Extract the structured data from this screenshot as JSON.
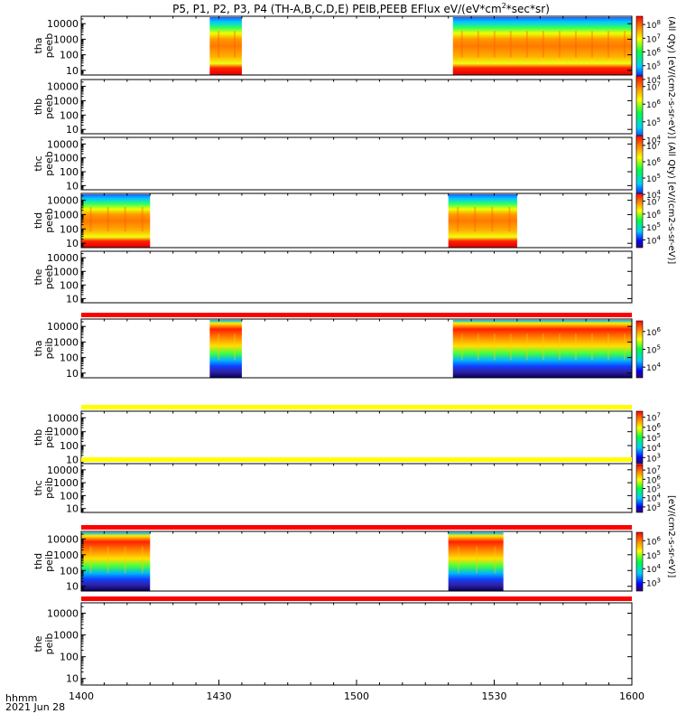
{
  "chart_data": {
    "type": "heatmap",
    "title": "P5, P1, P2, P3, P4 (TH-A,B,C,D,E) PEIB,PEEB EFlux eV/(eV*cm",
    "title_sup": "2",
    "title_end": "*sec*sr)",
    "x_axis": {
      "range": [
        "14:00",
        "16:00"
      ],
      "tick_labels": [
        "1400",
        "1430",
        "1500",
        "1530",
        "1600"
      ],
      "label_top": "hhmm",
      "label_bottom": "2021 Jun 28"
    },
    "y_axis": {
      "scale": "log",
      "range": [
        5,
        30000
      ],
      "tick_labels": [
        "10",
        "100",
        "1000",
        "10000"
      ]
    },
    "colorbar_label_electron": "(All Qty) [eV/(cm2-s-sr-eV)] (All Qty) [eV/(cm2-s-sr-eV)]",
    "colorbar_label_ion": "[eV/(cm2-s-sr-eV)]",
    "panels": [
      {
        "name": "tha peeb",
        "label1": "tha",
        "label2": "peeb",
        "species": "electron",
        "segments": [
          [
            "14:28",
            "14:35"
          ],
          [
            "15:21",
            "16:00"
          ]
        ],
        "colorbar_ticks": [
          "10^4",
          "10^5",
          "10^6",
          "10^7",
          "10^8"
        ]
      },
      {
        "name": "thb peeb",
        "label1": "thb",
        "label2": "peeb",
        "species": "electron",
        "segments": [],
        "colorbar_ticks": [
          "10^4",
          "10^5",
          "10^6",
          "10^7"
        ]
      },
      {
        "name": "thc peeb",
        "label1": "thc",
        "label2": "peeb",
        "species": "electron",
        "segments": [],
        "colorbar_ticks": [
          "10^4",
          "10^5",
          "10^6",
          "10^7"
        ]
      },
      {
        "name": "thd peeb",
        "label1": "thd",
        "label2": "peeb",
        "species": "electron",
        "segments": [
          [
            "14:00",
            "14:15"
          ],
          [
            "15:20",
            "15:35"
          ]
        ],
        "colorbar_ticks": [
          "10^4",
          "10^5",
          "10^6",
          "10^7"
        ]
      },
      {
        "name": "the peeb",
        "label1": "the",
        "label2": "peeb",
        "species": "electron",
        "segments": [],
        "colorbar_ticks": []
      },
      {
        "name": "tha peib",
        "label1": "tha",
        "label2": "peib",
        "species": "ion",
        "segments": [
          [
            "14:28",
            "14:35"
          ],
          [
            "15:21",
            "16:00"
          ]
        ],
        "colorbar_ticks": [
          "10^4",
          "10^5",
          "10^6"
        ],
        "bar_color": "#ff0000"
      },
      {
        "name": "thb peib",
        "label1": "thb",
        "label2": "peib",
        "species": "ion",
        "segments": [],
        "colorbar_ticks": [
          "10^3",
          "10^4",
          "10^5",
          "10^6",
          "10^7"
        ],
        "bar_color": "#ffff00"
      },
      {
        "name": "thc peib",
        "label1": "thc",
        "label2": "peib",
        "species": "ion",
        "segments": [],
        "colorbar_ticks": [
          "10^3",
          "10^4",
          "10^5",
          "10^6",
          "10^7"
        ],
        "bar_color": "#ffff00"
      },
      {
        "name": "thd peib",
        "label1": "thd",
        "label2": "peib",
        "species": "ion",
        "segments": [
          [
            "14:00",
            "14:15"
          ],
          [
            "15:20",
            "15:32"
          ]
        ],
        "colorbar_ticks": [
          "10^3",
          "10^4",
          "10^5",
          "10^6"
        ],
        "bar_color": "#ff0000"
      },
      {
        "name": "the peib",
        "label1": "the",
        "label2": "peib",
        "species": "ion",
        "segments": [],
        "colorbar_ticks": [],
        "bar_color": "#ff0000"
      }
    ]
  }
}
